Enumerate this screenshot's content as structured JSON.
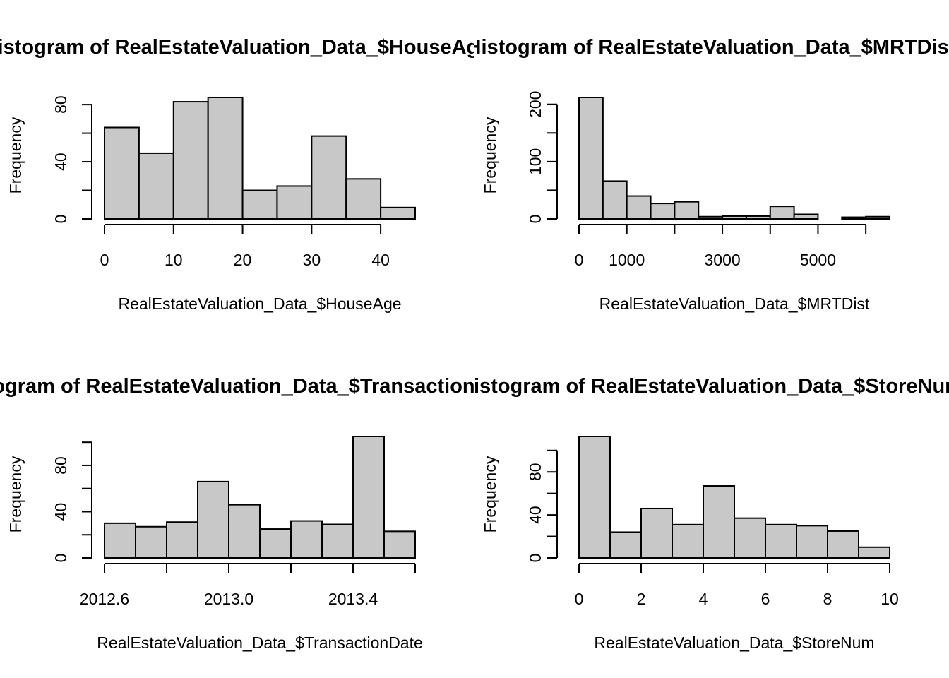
{
  "chart_data": [
    {
      "type": "bar",
      "title": "Histogram of RealEstateValuation_Data_$HouseAge",
      "xlabel": "RealEstateValuation_Data_$HouseAge",
      "ylabel": "Frequency",
      "bins": [
        [
          0,
          5
        ],
        [
          5,
          10
        ],
        [
          10,
          15
        ],
        [
          15,
          20
        ],
        [
          20,
          25
        ],
        [
          25,
          30
        ],
        [
          30,
          35
        ],
        [
          35,
          40
        ],
        [
          40,
          45
        ]
      ],
      "values": [
        64,
        46,
        82,
        85,
        20,
        23,
        58,
        28,
        8
      ],
      "xlim": [
        0,
        45
      ],
      "ylim": [
        0,
        85
      ],
      "xticks": [
        0,
        10,
        20,
        30,
        40
      ],
      "yticks": [
        0,
        20,
        40,
        60,
        80
      ],
      "xtick_labels": [
        "0",
        "10",
        "20",
        "30",
        "40"
      ],
      "ytick_labels": [
        "0",
        "",
        "40",
        "",
        "80"
      ],
      "bar_color": "#c8c8c8",
      "grid": false
    },
    {
      "type": "bar",
      "title": "Histogram of RealEstateValuation_Data_$MRTDist",
      "xlabel": "RealEstateValuation_Data_$MRTDist",
      "ylabel": "Frequency",
      "bins": [
        [
          0,
          500
        ],
        [
          500,
          1000
        ],
        [
          1000,
          1500
        ],
        [
          1500,
          2000
        ],
        [
          2000,
          2500
        ],
        [
          2500,
          3000
        ],
        [
          3000,
          3500
        ],
        [
          3500,
          4000
        ],
        [
          4000,
          4500
        ],
        [
          4500,
          5000
        ],
        [
          5000,
          5500
        ],
        [
          5500,
          6000
        ],
        [
          6000,
          6500
        ]
      ],
      "values": [
        212,
        66,
        40,
        27,
        30,
        4,
        5,
        5,
        22,
        8,
        0,
        3,
        4
      ],
      "xlim": [
        0,
        6500
      ],
      "ylim": [
        0,
        212
      ],
      "xticks": [
        0,
        1000,
        2000,
        3000,
        4000,
        5000,
        6000
      ],
      "yticks": [
        0,
        50,
        100,
        150,
        200
      ],
      "xtick_labels": [
        "0",
        "1000",
        "",
        "3000",
        "",
        "5000",
        ""
      ],
      "ytick_labels": [
        "0",
        "",
        "100",
        "",
        "200"
      ],
      "bar_color": "#c8c8c8",
      "grid": false
    },
    {
      "type": "bar",
      "title": "Histogram of RealEstateValuation_Data_$TransactionDate",
      "xlabel": "RealEstateValuation_Data_$TransactionDate",
      "ylabel": "Frequency",
      "bins": [
        [
          2012.6,
          2012.7
        ],
        [
          2012.7,
          2012.8
        ],
        [
          2012.8,
          2012.9
        ],
        [
          2012.9,
          2013.0
        ],
        [
          2013.0,
          2013.1
        ],
        [
          2013.1,
          2013.2
        ],
        [
          2013.2,
          2013.3
        ],
        [
          2013.3,
          2013.4
        ],
        [
          2013.4,
          2013.5
        ],
        [
          2013.5,
          2013.6
        ]
      ],
      "values": [
        30,
        27,
        31,
        66,
        46,
        25,
        32,
        29,
        105,
        23
      ],
      "xlim": [
        2012.6,
        2013.6
      ],
      "ylim": [
        0,
        105
      ],
      "xticks": [
        2012.6,
        2012.8,
        2013.0,
        2013.2,
        2013.4,
        2013.6
      ],
      "yticks": [
        0,
        20,
        40,
        60,
        80,
        100
      ],
      "xtick_labels": [
        "2012.6",
        "",
        "2013.0",
        "",
        "2013.4",
        ""
      ],
      "ytick_labels": [
        "0",
        "",
        "40",
        "",
        "80",
        ""
      ],
      "bar_color": "#c8c8c8",
      "grid": false
    },
    {
      "type": "bar",
      "title": "Histogram of RealEstateValuation_Data_$StoreNum",
      "xlabel": "RealEstateValuation_Data_$StoreNum",
      "ylabel": "Frequency",
      "bins": [
        [
          0,
          1
        ],
        [
          1,
          2
        ],
        [
          2,
          3
        ],
        [
          3,
          4
        ],
        [
          4,
          5
        ],
        [
          5,
          6
        ],
        [
          6,
          7
        ],
        [
          7,
          8
        ],
        [
          8,
          9
        ],
        [
          9,
          10
        ]
      ],
      "values": [
        113,
        24,
        46,
        31,
        67,
        37,
        31,
        30,
        25,
        10
      ],
      "xlim": [
        0,
        10
      ],
      "ylim": [
        0,
        113
      ],
      "xticks": [
        0,
        2,
        4,
        6,
        8,
        10
      ],
      "yticks": [
        0,
        20,
        40,
        60,
        80,
        100
      ],
      "xtick_labels": [
        "0",
        "2",
        "4",
        "6",
        "8",
        "10"
      ],
      "ytick_labels": [
        "0",
        "",
        "40",
        "",
        "80",
        ""
      ],
      "bar_color": "#c8c8c8",
      "grid": false
    }
  ]
}
